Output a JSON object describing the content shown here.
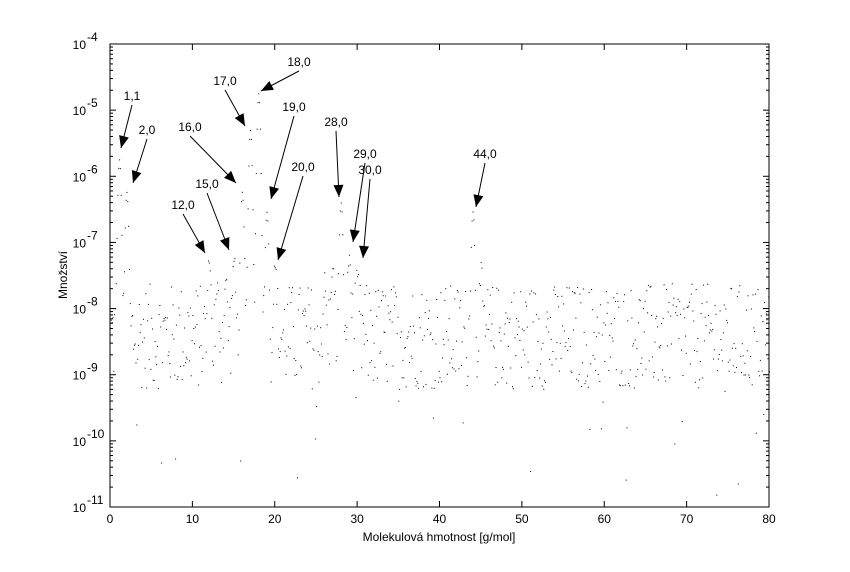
{
  "chart_data": {
    "type": "scatter",
    "title": "",
    "xlabel": "Molekulová hmotnost [g/mol]",
    "ylabel": "Množství",
    "xlim": [
      0,
      80
    ],
    "ylim": [
      1e-11,
      0.0001
    ],
    "yscale": "log",
    "grid": false,
    "legend": "none",
    "x_ticks": [
      "0",
      "10",
      "20",
      "30",
      "40",
      "50",
      "60",
      "70",
      "80"
    ],
    "y_ticks": [
      {
        "base": "10",
        "exp": "-4"
      },
      {
        "base": "10",
        "exp": "-5"
      },
      {
        "base": "10",
        "exp": "-6"
      },
      {
        "base": "10",
        "exp": "-7"
      },
      {
        "base": "10",
        "exp": "-8"
      },
      {
        "base": "10",
        "exp": "-9"
      },
      {
        "base": "10",
        "exp": "-10"
      },
      {
        "base": "10",
        "exp": "-11"
      }
    ],
    "marker_color": "#000000",
    "noise_level": 8e-09,
    "peaks": [
      {
        "x": 1.1,
        "y": 1.8e-06
      },
      {
        "x": 2.0,
        "y": 5.7e-07
      },
      {
        "x": 12.0,
        "y": 4.9e-08
      },
      {
        "x": 13.0,
        "y": 1.2e-08
      },
      {
        "x": 14.0,
        "y": 2.2e-08
      },
      {
        "x": 15.0,
        "y": 5e-08
      },
      {
        "x": 16.0,
        "y": 5.7e-07
      },
      {
        "x": 17.0,
        "y": 5e-06
      },
      {
        "x": 18.0,
        "y": 1.8e-05
      },
      {
        "x": 19.0,
        "y": 2.9e-07
      },
      {
        "x": 20.0,
        "y": 3.8e-08
      },
      {
        "x": 26.0,
        "y": 1.8e-08
      },
      {
        "x": 27.0,
        "y": 4e-08
      },
      {
        "x": 28.0,
        "y": 4e-07
      },
      {
        "x": 29.0,
        "y": 5.8e-08
      },
      {
        "x": 30.0,
        "y": 2.4e-08
      },
      {
        "x": 44.0,
        "y": 2.9e-07
      },
      {
        "x": 45.0,
        "y": 2.7e-08
      }
    ],
    "annotations": [
      "1,1",
      "2,0",
      "12,0",
      "15,0",
      "16,0",
      "17,0",
      "18,0",
      "19,0",
      "20,0",
      "28,0",
      "29,0",
      "30,0",
      "44,0"
    ]
  }
}
